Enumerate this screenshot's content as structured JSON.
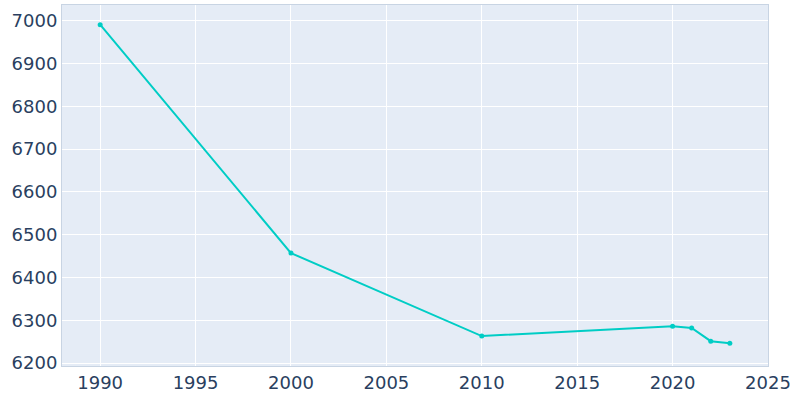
{
  "chart_data": {
    "type": "line",
    "x": [
      1990,
      2000,
      2010,
      2020,
      2021,
      2022,
      2023
    ],
    "values": [
      6991,
      6457,
      6263,
      6286,
      6282,
      6251,
      6246
    ],
    "color": "#00cdc5",
    "marker": "circle",
    "line_style": "solid",
    "xlim": [
      1988,
      2025
    ],
    "xticks": [
      1990,
      1995,
      2000,
      2005,
      2010,
      2015,
      2020,
      2025
    ],
    "ylim": [
      6193,
      7037
    ],
    "yticks": [
      6200,
      6300,
      6400,
      6500,
      6600,
      6700,
      6800,
      6900,
      7000
    ],
    "grid": true
  }
}
